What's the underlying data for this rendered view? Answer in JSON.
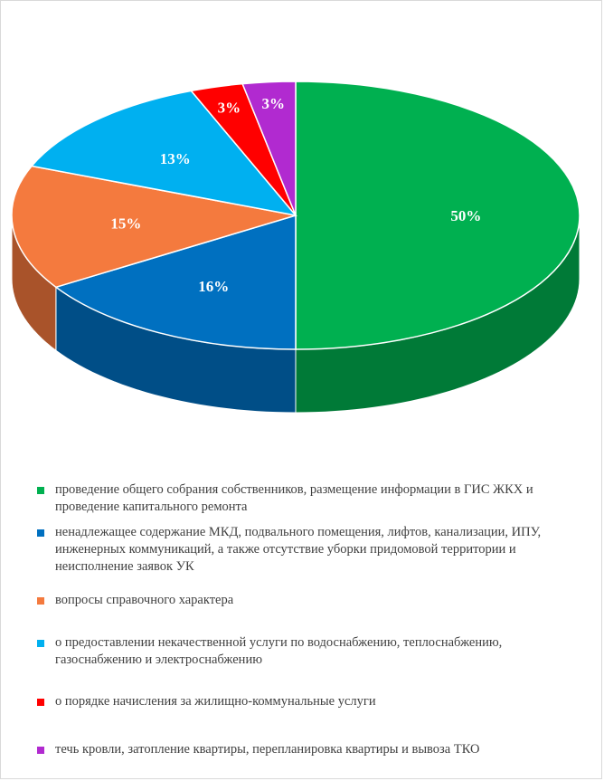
{
  "chart_data": {
    "type": "pie",
    "title": "",
    "slices": [
      {
        "label": "проведение общего собрания собственников, размещение информации в ГИС ЖКХ и проведение капитального ремонта",
        "value": 50,
        "value_label": "50%",
        "color": "#00b050",
        "side_color": "#007a37"
      },
      {
        "label": "ненадлежащее содержание МКД, подвального помещения, лифтов, канализации, ИПУ, инженерных коммуникаций, а также отсутствие уборки придомовой территории и неисполнение заявок УК",
        "value": 16,
        "value_label": "16%",
        "color": "#0070c0",
        "side_color": "#004e87"
      },
      {
        "label": "вопросы справочного характера",
        "value": 15,
        "value_label": "15%",
        "color": "#f47a3e",
        "side_color": "#a9532a"
      },
      {
        "label": "о предоставлении некачественной услуги по водоснабжению, теплоснабжению, газоснабжению и электроснабжению",
        "value": 13,
        "value_label": "13%",
        "color": "#00b0f0",
        "side_color": "#0079a8"
      },
      {
        "label": "о порядке начисления за жилищно-коммунальные услуги",
        "value": 3,
        "value_label": "3%",
        "color": "#ff0000",
        "side_color": "#b00000"
      },
      {
        "label": "течь кровли, затопление квартиры, перепланировка квартиры и вывоза ТКО",
        "value": 3,
        "value_label": "3%",
        "color": "#b12ad0",
        "side_color": "#7a1d90"
      }
    ],
    "legend_position": "bottom",
    "three_d": true
  }
}
